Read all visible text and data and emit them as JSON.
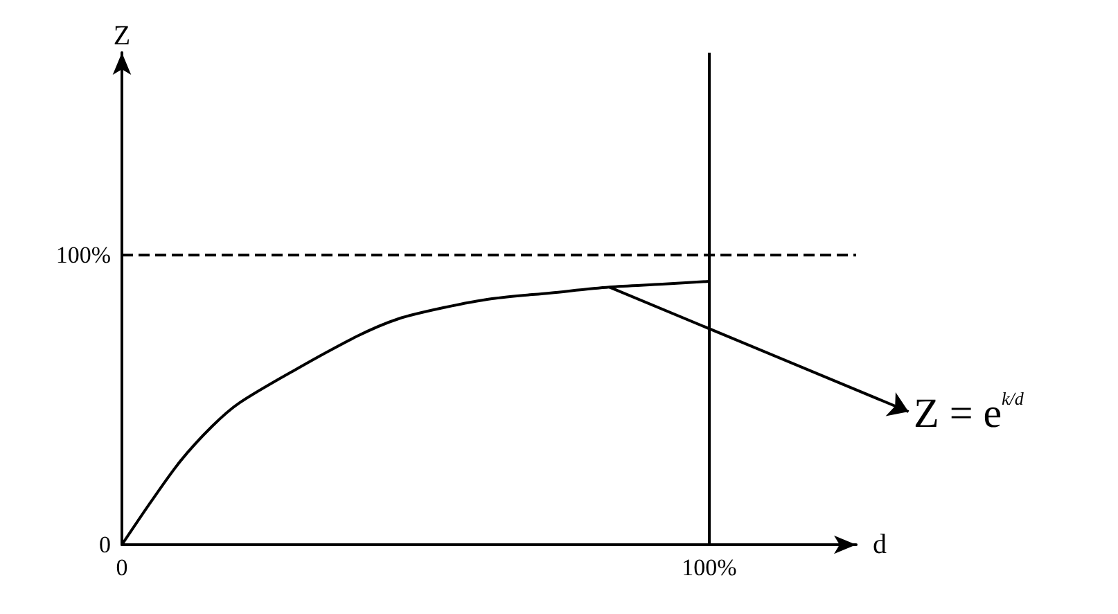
{
  "chart_data": {
    "type": "line",
    "xlabel": "d",
    "ylabel": "Z",
    "color": "#000000",
    "x": [
      0,
      0.05,
      0.1,
      0.154,
      0.2,
      0.3,
      0.4,
      0.47,
      0.55,
      0.63,
      0.73,
      0.83,
      0.92,
      1
    ],
    "values": [
      0,
      0.15,
      0.29,
      0.41,
      0.49,
      0.61,
      0.72,
      0.78,
      0.82,
      0.85,
      0.87,
      0.89,
      0.9,
      0.91
    ],
    "xlim": [
      0,
      1.25
    ],
    "ylim": [
      0,
      1.7
    ],
    "yticks": [
      {
        "value": 0,
        "label": "0"
      },
      {
        "value": 1,
        "label": "100%"
      }
    ],
    "xticks": [
      {
        "value": 0,
        "label": "0"
      },
      {
        "value": 1,
        "label": "100%"
      }
    ],
    "ref_lines": [
      {
        "axis": "y",
        "value": 1,
        "line_style": "dashed"
      },
      {
        "axis": "x",
        "value": 1,
        "line_style": "solid"
      }
    ],
    "annotations": [
      {
        "text": "Z = e$^{k/d}$",
        "x": 0.83,
        "y": 0.89
      }
    ],
    "marker": "none",
    "line_style": "solid",
    "grid": false
  }
}
